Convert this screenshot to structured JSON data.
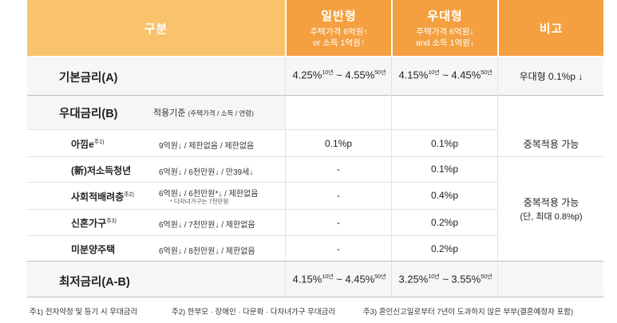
{
  "header": {
    "category": "구분",
    "general": {
      "title": "일반형",
      "line1": "주택가격 6억원↑",
      "line2": "or 소득 1억원↑"
    },
    "preferential": {
      "title": "우대형",
      "line1": "주택가격 6억원↓",
      "line2": "and 소득 1억원↓"
    },
    "remarks": "비고"
  },
  "base_rate": {
    "label": "기본금리(A)",
    "general": {
      "from": "4.25%",
      "from_sup": "10년",
      "sep": " ~ ",
      "to": "4.55%",
      "to_sup": "50년"
    },
    "preferential": {
      "from": "4.15%",
      "from_sup": "10년",
      "sep": " ~ ",
      "to": "4.45%",
      "to_sup": "50년"
    },
    "note": "우대형 0.1%p ↓"
  },
  "pref_rate": {
    "label": "우대금리(B)",
    "criteria_label": "적용기준",
    "criteria_detail": "(주택가격 / 소득 / 연령)"
  },
  "rows": [
    {
      "label": "아낌e",
      "sup": "주1)",
      "criteria": "9억원↓ / 제한없음 / 제한없음",
      "criteria_note": "",
      "general": "0.1%p",
      "preferential": "0.1%p"
    },
    {
      "label": "(新)저소득청년",
      "sup": "",
      "criteria": "6억원↓ / 6천만원↓ / 만39세↓",
      "criteria_note": "",
      "general": "-",
      "preferential": "0.1%p"
    },
    {
      "label": "사회적배려층",
      "sup": "주2)",
      "criteria": "6억원↓ / 6천만원*↓ / 제한없음",
      "criteria_note": "* 다자녀가구는 7천만원",
      "general": "-",
      "preferential": "0.4%p"
    },
    {
      "label": "신혼가구",
      "sup": "주3)",
      "criteria": "6억원↓ / 7천만원↓ / 제한없음",
      "criteria_note": "",
      "general": "-",
      "preferential": "0.2%p"
    },
    {
      "label": "미분양주택",
      "sup": "",
      "criteria": "6억원↓ / 8천만원↓ / 제한없음",
      "criteria_note": "",
      "general": "-",
      "preferential": "0.2%p"
    }
  ],
  "remarks": {
    "first": "중복적용 가능",
    "second_line1": "중복적용 가능",
    "second_line2": "(단, 최대 0.8%p)"
  },
  "min_rate": {
    "label": "최저금리(A-B)",
    "general": {
      "from": "4.15%",
      "from_sup": "10년",
      "sep": " ~ ",
      "to": "4.45%",
      "to_sup": "50년"
    },
    "preferential": {
      "from": "3.25%",
      "from_sup": "10년",
      "sep": " ~ ",
      "to": "3.55%",
      "to_sup": "50년"
    }
  },
  "footnotes": [
    "주1) 전자약정 및 등기 시 우대금리",
    "주2) 한부모 · 장애인 · 다문화 · 다자녀가구 우대금리",
    "주3) 혼인신고일로부터 7년이 도과하지 않은 부부(결혼예정자 포함)"
  ],
  "colors": {
    "header_main": "#f8c36b",
    "header_accent": "#f4a040",
    "row_bg": "#f6f6f6"
  }
}
